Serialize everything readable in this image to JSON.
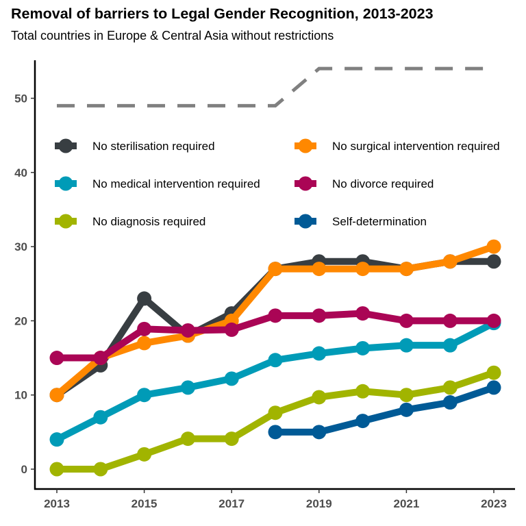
{
  "chart_data": {
    "type": "line",
    "title": "Removal of barriers to Legal Gender Recognition, 2013-2023",
    "subtitle": "Total countries in Europe & Central Asia without restrictions",
    "xlabel": "",
    "ylabel": "",
    "xlim": [
      2013,
      2023
    ],
    "ylim": [
      0,
      55
    ],
    "x_ticks": [
      "2013",
      "2015",
      "2017",
      "2019",
      "2021",
      "2023"
    ],
    "y_ticks": [
      "0",
      "10",
      "20",
      "30",
      "40",
      "50"
    ],
    "grid": false,
    "legend_placement": "inside-top",
    "reference_line": {
      "style": "dashed",
      "color": "#808080",
      "x": [
        2013,
        2014,
        2015,
        2016,
        2017,
        2018,
        2019,
        2020,
        2021,
        2022,
        2023
      ],
      "values": [
        49,
        49,
        49,
        49,
        49,
        49,
        54,
        54,
        54,
        54,
        54
      ]
    },
    "series": [
      {
        "name": "No sterilisation required",
        "color": "#383e42",
        "x": [
          2013,
          2014,
          2015,
          2016,
          2017,
          2018,
          2019,
          2020,
          2021,
          2022,
          2023
        ],
        "values": [
          10,
          14,
          23,
          18,
          21,
          27,
          28,
          28,
          27,
          28,
          28
        ]
      },
      {
        "name": "No surgical intervention required",
        "color": "#ff8800",
        "x": [
          2013,
          2014,
          2015,
          2016,
          2017,
          2018,
          2019,
          2020,
          2021,
          2022,
          2023
        ],
        "values": [
          10,
          15,
          17,
          18,
          20,
          27,
          27,
          27,
          27,
          28,
          30
        ]
      },
      {
        "name": "No medical intervention required",
        "color": "#009bb7",
        "x": [
          2013,
          2014,
          2015,
          2016,
          2017,
          2018,
          2019,
          2020,
          2021,
          2022,
          2023
        ],
        "values": [
          4,
          7,
          10,
          11,
          12.2,
          14.7,
          15.6,
          16.3,
          16.7,
          16.7,
          19.7
        ]
      },
      {
        "name": "No divorce required",
        "color": "#aa0555",
        "x": [
          2013,
          2014,
          2015,
          2016,
          2017,
          2018,
          2019,
          2020,
          2021,
          2022,
          2023
        ],
        "values": [
          15,
          15,
          18.9,
          18.7,
          18.8,
          20.7,
          20.7,
          21,
          20,
          20,
          20
        ]
      },
      {
        "name": "No diagnosis required",
        "color": "#a1b400",
        "x": [
          2013,
          2014,
          2015,
          2016,
          2017,
          2018,
          2019,
          2020,
          2021,
          2022,
          2023
        ],
        "values": [
          0,
          0,
          2,
          4.1,
          4.1,
          7.6,
          9.7,
          10.5,
          10,
          11,
          13
        ]
      },
      {
        "name": "Self-determination",
        "color": "#005a96",
        "x": [
          2018,
          2019,
          2020,
          2021,
          2022,
          2023
        ],
        "values": [
          5,
          5,
          6.5,
          8,
          9,
          11
        ]
      }
    ]
  }
}
